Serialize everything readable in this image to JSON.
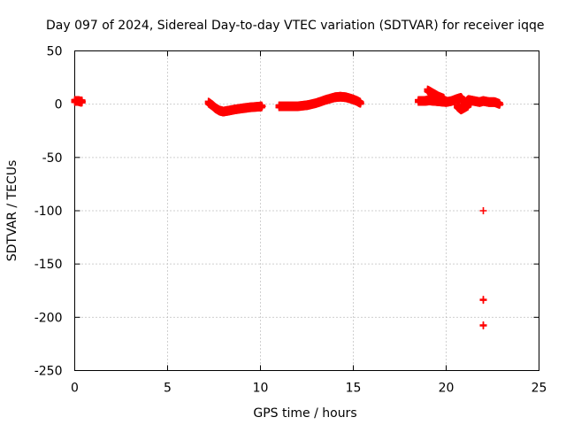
{
  "chart_data": {
    "type": "scatter",
    "title": "Day 097 of 2024, Sidereal Day-to-day VTEC variation (SDTVAR) for receiver iqqe",
    "xlabel": "GPS time / hours",
    "ylabel": "SDTVAR / TECUs",
    "xlim": [
      0,
      25
    ],
    "ylim": [
      -250,
      50
    ],
    "xticks": [
      "0",
      "5",
      "10",
      "15",
      "20",
      "25"
    ],
    "yticks": [
      "50",
      "0",
      "-50",
      "-100",
      "-150",
      "-200",
      "-250"
    ],
    "grid": true,
    "marker": "plus",
    "series_color": "#ff0000",
    "segments": [
      {
        "x": [
          0.0,
          0.1,
          0.2,
          0.3,
          0.4
        ],
        "y": [
          3,
          3,
          3,
          2.5,
          2.5
        ]
      },
      {
        "x": [
          7.2,
          7.4,
          7.6,
          7.8,
          8.0,
          8.3,
          8.6,
          9.0,
          9.4,
          9.8,
          10.1
        ],
        "y": [
          1.5,
          -1,
          -4,
          -6,
          -7,
          -6,
          -5,
          -4,
          -3,
          -2.5,
          -2
        ]
      },
      {
        "x": [
          11.0,
          11.5,
          12.0,
          12.5,
          13.0,
          13.5,
          14.0,
          14.3,
          14.6,
          14.9,
          15.2,
          15.4
        ],
        "y": [
          -2,
          -2,
          -2,
          -1,
          1,
          4,
          6.5,
          7,
          6.5,
          5,
          3,
          1
        ]
      },
      {
        "x": [
          18.5,
          18.8,
          19.1,
          19.4,
          19.7,
          20.0,
          20.3,
          20.6,
          20.8,
          21.0,
          21.2,
          21.5,
          21.8,
          22.0,
          22.3,
          22.6,
          22.9
        ],
        "y": [
          3,
          3,
          3.5,
          3,
          2.5,
          2,
          3,
          5,
          6,
          1,
          4,
          3,
          2,
          3,
          2,
          2,
          0
        ]
      },
      {
        "x": [
          19.0,
          19.3,
          19.6,
          19.9
        ],
        "y": [
          13,
          10,
          7,
          5
        ]
      },
      {
        "x": [
          20.6,
          20.8,
          21.0,
          21.2
        ],
        "y": [
          -2,
          -5,
          -3,
          -1
        ]
      }
    ],
    "outliers": {
      "x": [
        22.0,
        22.0,
        22.0
      ],
      "y": [
        -100,
        -184,
        -208
      ]
    }
  }
}
